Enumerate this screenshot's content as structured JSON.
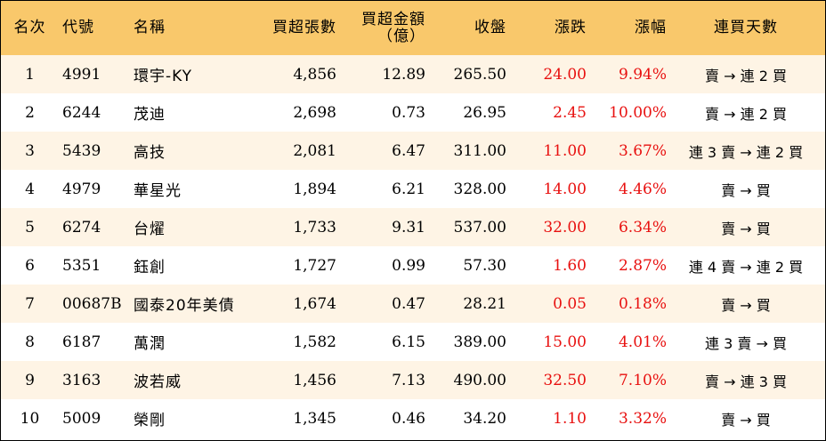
{
  "header": {
    "rank": "名次",
    "code": "代號",
    "name": "名稱",
    "shares": "買超張數",
    "amount_line1": "買超金額",
    "amount_line2": "（億）",
    "close": "收盤",
    "change": "漲跌",
    "pct": "漲幅",
    "streak": "連買天數"
  },
  "colors": {
    "header_bg": "#f9c86b",
    "stripe_bg": "#fef4e5",
    "up": "#e8100f"
  },
  "rows": [
    {
      "rank": "1",
      "code": "4991",
      "name": "環宇-KY",
      "shares": "4,856",
      "amount": "12.89",
      "close": "265.50",
      "change": "24.00",
      "pct": "9.94%",
      "streak": "賣 → 連 2 買"
    },
    {
      "rank": "2",
      "code": "6244",
      "name": "茂迪",
      "shares": "2,698",
      "amount": "0.73",
      "close": "26.95",
      "change": "2.45",
      "pct": "10.00%",
      "streak": "賣 → 連 2 買"
    },
    {
      "rank": "3",
      "code": "5439",
      "name": "高技",
      "shares": "2,081",
      "amount": "6.47",
      "close": "311.00",
      "change": "11.00",
      "pct": "3.67%",
      "streak": "連 3 賣 → 連 2 買"
    },
    {
      "rank": "4",
      "code": "4979",
      "name": "華星光",
      "shares": "1,894",
      "amount": "6.21",
      "close": "328.00",
      "change": "14.00",
      "pct": "4.46%",
      "streak": "賣 → 買"
    },
    {
      "rank": "5",
      "code": "6274",
      "name": "台燿",
      "shares": "1,733",
      "amount": "9.31",
      "close": "537.00",
      "change": "32.00",
      "pct": "6.34%",
      "streak": "賣 → 買"
    },
    {
      "rank": "6",
      "code": "5351",
      "name": "鈺創",
      "shares": "1,727",
      "amount": "0.99",
      "close": "57.30",
      "change": "1.60",
      "pct": "2.87%",
      "streak": "連 4 賣 → 連 2 買"
    },
    {
      "rank": "7",
      "code": "00687B",
      "name": "國泰20年美債",
      "shares": "1,674",
      "amount": "0.47",
      "close": "28.21",
      "change": "0.05",
      "pct": "0.18%",
      "streak": "賣 → 買"
    },
    {
      "rank": "8",
      "code": "6187",
      "name": "萬潤",
      "shares": "1,582",
      "amount": "6.15",
      "close": "389.00",
      "change": "15.00",
      "pct": "4.01%",
      "streak": "連 3 賣 → 買"
    },
    {
      "rank": "9",
      "code": "3163",
      "name": "波若威",
      "shares": "1,456",
      "amount": "7.13",
      "close": "490.00",
      "change": "32.50",
      "pct": "7.10%",
      "streak": "賣 → 連 3 買"
    },
    {
      "rank": "10",
      "code": "5009",
      "name": "榮剛",
      "shares": "1,345",
      "amount": "0.46",
      "close": "34.20",
      "change": "1.10",
      "pct": "3.32%",
      "streak": "賣 → 買"
    }
  ]
}
